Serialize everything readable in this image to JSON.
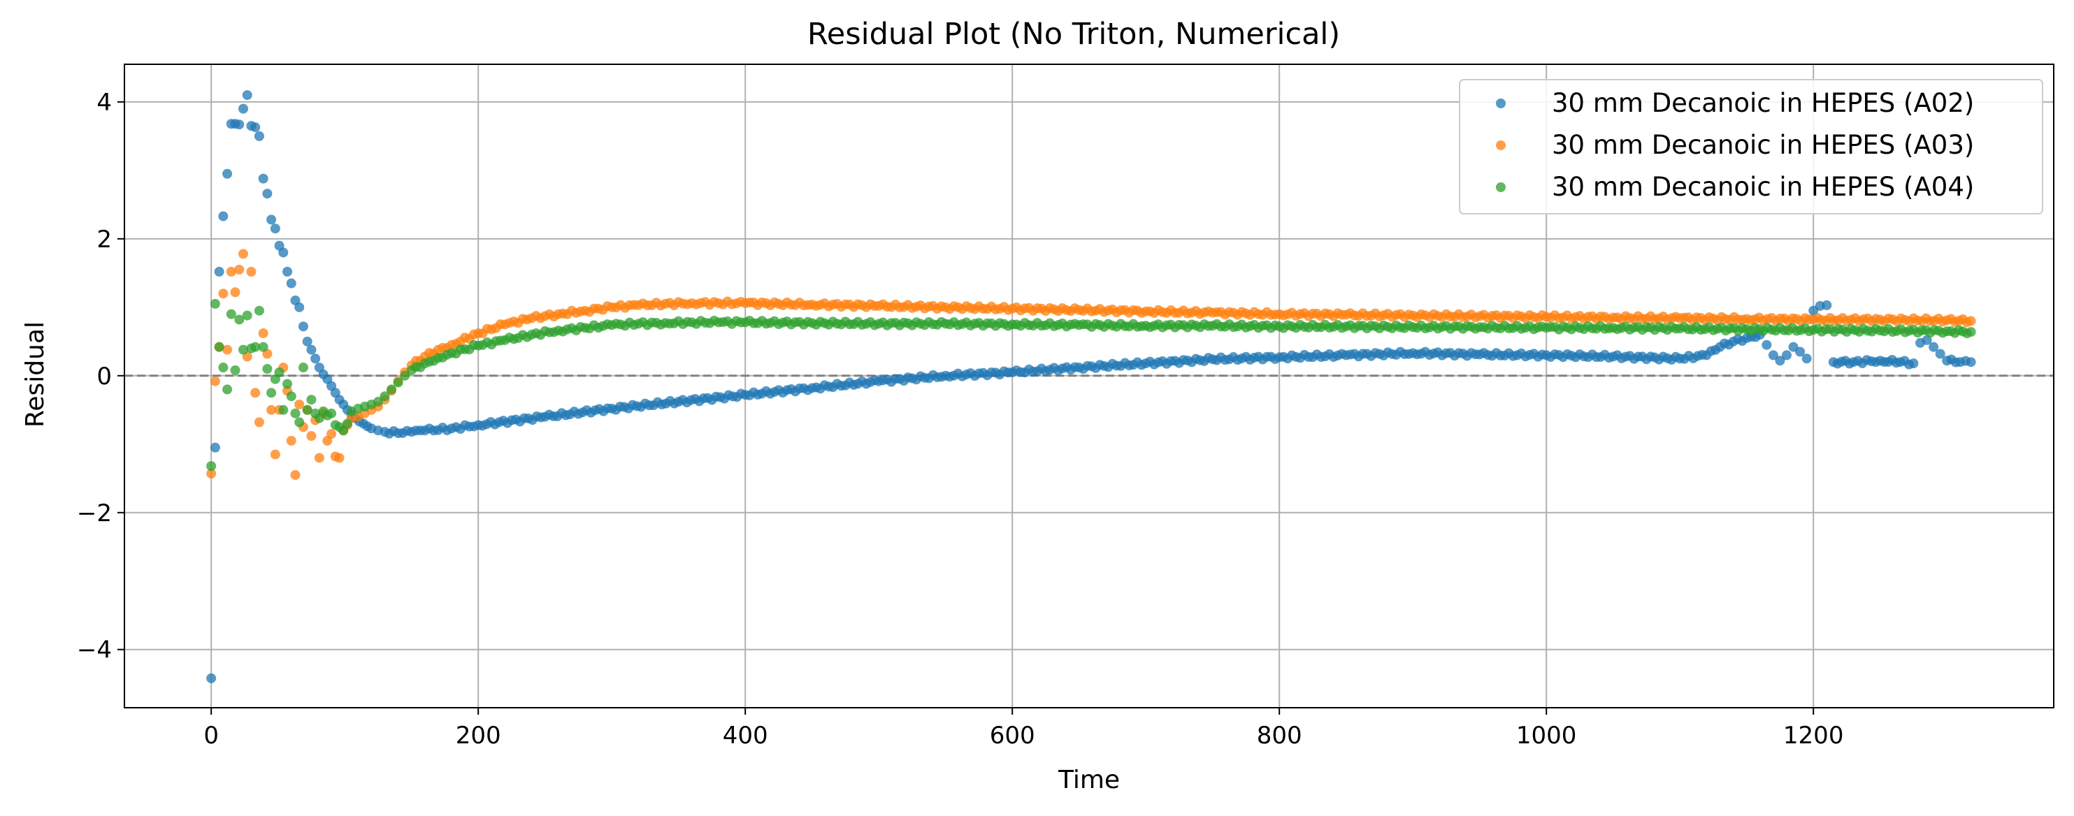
{
  "chart_data": {
    "type": "scatter",
    "title": "Residual Plot (No Triton, Numerical)",
    "xlabel": "Time",
    "ylabel": "Residual",
    "xlim": [
      -65,
      1380
    ],
    "ylim": [
      -4.85,
      4.55
    ],
    "xticks": [
      0,
      200,
      400,
      600,
      800,
      1000,
      1200
    ],
    "yticks": [
      -4,
      -2,
      0,
      2,
      4
    ],
    "ytick_labels": [
      "−4",
      "−2",
      "0",
      "2",
      "4"
    ],
    "grid": true,
    "reference_line": {
      "y": 0,
      "style": "dashed",
      "color": "#808080"
    },
    "legend_position": "top-right",
    "series": [
      {
        "name": "30 mm Decanoic in HEPES (A02)",
        "color": "#1f77b4",
        "points": [
          [
            0,
            -4.42
          ],
          [
            3,
            -1.05
          ],
          [
            6,
            1.52
          ],
          [
            9,
            2.33
          ],
          [
            12,
            2.95
          ],
          [
            15,
            3.68
          ],
          [
            18,
            3.68
          ],
          [
            21,
            3.67
          ],
          [
            24,
            3.9
          ],
          [
            27,
            4.1
          ],
          [
            30,
            3.65
          ],
          [
            33,
            3.63
          ],
          [
            36,
            3.5
          ],
          [
            39,
            2.88
          ],
          [
            42,
            2.66
          ],
          [
            45,
            2.28
          ],
          [
            48,
            2.15
          ],
          [
            51,
            1.9
          ],
          [
            54,
            1.8
          ],
          [
            57,
            1.52
          ],
          [
            60,
            1.35
          ],
          [
            63,
            1.1
          ],
          [
            66,
            1.0
          ],
          [
            69,
            0.72
          ],
          [
            72,
            0.5
          ],
          [
            75,
            0.38
          ],
          [
            78,
            0.25
          ],
          [
            81,
            0.12
          ],
          [
            84,
            0.02
          ],
          [
            87,
            -0.05
          ],
          [
            90,
            -0.15
          ],
          [
            93,
            -0.25
          ],
          [
            96,
            -0.35
          ],
          [
            99,
            -0.42
          ],
          [
            102,
            -0.5
          ],
          [
            105,
            -0.57
          ],
          [
            108,
            -0.62
          ],
          [
            111,
            -0.67
          ],
          [
            114,
            -0.7
          ],
          [
            117,
            -0.74
          ],
          [
            120,
            -0.77
          ],
          [
            125,
            -0.8
          ],
          [
            130,
            -0.82
          ],
          [
            140,
            -0.84
          ],
          [
            150,
            -0.82
          ],
          [
            160,
            -0.8
          ],
          [
            180,
            -0.77
          ],
          [
            200,
            -0.72
          ],
          [
            250,
            -0.6
          ],
          [
            300,
            -0.48
          ],
          [
            350,
            -0.38
          ],
          [
            400,
            -0.28
          ],
          [
            450,
            -0.18
          ],
          [
            500,
            -0.08
          ],
          [
            550,
            0.0
          ],
          [
            600,
            0.05
          ],
          [
            650,
            0.12
          ],
          [
            700,
            0.18
          ],
          [
            750,
            0.24
          ],
          [
            800,
            0.27
          ],
          [
            850,
            0.3
          ],
          [
            900,
            0.33
          ],
          [
            950,
            0.31
          ],
          [
            1000,
            0.3
          ],
          [
            1050,
            0.28
          ],
          [
            1100,
            0.25
          ],
          [
            1120,
            0.3
          ],
          [
            1130,
            0.42
          ],
          [
            1140,
            0.5
          ],
          [
            1150,
            0.55
          ],
          [
            1160,
            0.6
          ],
          [
            1165,
            0.45
          ],
          [
            1170,
            0.3
          ],
          [
            1175,
            0.22
          ],
          [
            1180,
            0.3
          ],
          [
            1185,
            0.42
          ],
          [
            1190,
            0.35
          ],
          [
            1195,
            0.25
          ],
          [
            1200,
            0.95
          ],
          [
            1205,
            1.02
          ],
          [
            1210,
            1.03
          ],
          [
            1215,
            0.2
          ],
          [
            1230,
            0.2
          ],
          [
            1250,
            0.22
          ],
          [
            1265,
            0.2
          ],
          [
            1275,
            0.18
          ],
          [
            1280,
            0.48
          ],
          [
            1285,
            0.52
          ],
          [
            1290,
            0.42
          ],
          [
            1295,
            0.32
          ],
          [
            1300,
            0.22
          ],
          [
            1310,
            0.2
          ],
          [
            1318,
            0.2
          ]
        ]
      },
      {
        "name": "30 mm Decanoic in HEPES (A03)",
        "color": "#ff7f0e",
        "points": [
          [
            0,
            -1.43
          ],
          [
            3,
            -0.08
          ],
          [
            6,
            0.42
          ],
          [
            9,
            1.2
          ],
          [
            12,
            0.38
          ],
          [
            15,
            1.52
          ],
          [
            18,
            1.22
          ],
          [
            21,
            1.55
          ],
          [
            24,
            1.78
          ],
          [
            27,
            0.28
          ],
          [
            30,
            1.52
          ],
          [
            33,
            -0.25
          ],
          [
            36,
            -0.68
          ],
          [
            39,
            0.62
          ],
          [
            42,
            0.32
          ],
          [
            45,
            -0.5
          ],
          [
            48,
            -1.15
          ],
          [
            51,
            -0.5
          ],
          [
            54,
            0.12
          ],
          [
            57,
            -0.22
          ],
          [
            60,
            -0.95
          ],
          [
            63,
            -1.45
          ],
          [
            66,
            -0.42
          ],
          [
            69,
            -0.75
          ],
          [
            72,
            -0.5
          ],
          [
            75,
            -0.88
          ],
          [
            78,
            -0.65
          ],
          [
            81,
            -1.2
          ],
          [
            84,
            -0.55
          ],
          [
            87,
            -0.95
          ],
          [
            90,
            -0.85
          ],
          [
            93,
            -1.18
          ],
          [
            96,
            -1.2
          ],
          [
            99,
            -0.8
          ],
          [
            102,
            -0.72
          ],
          [
            105,
            -0.62
          ],
          [
            110,
            -0.6
          ],
          [
            115,
            -0.55
          ],
          [
            120,
            -0.5
          ],
          [
            125,
            -0.45
          ],
          [
            130,
            -0.35
          ],
          [
            135,
            -0.22
          ],
          [
            140,
            -0.08
          ],
          [
            145,
            0.05
          ],
          [
            150,
            0.15
          ],
          [
            160,
            0.28
          ],
          [
            170,
            0.38
          ],
          [
            180,
            0.45
          ],
          [
            200,
            0.62
          ],
          [
            220,
            0.75
          ],
          [
            240,
            0.84
          ],
          [
            260,
            0.9
          ],
          [
            280,
            0.95
          ],
          [
            300,
            1.0
          ],
          [
            320,
            1.03
          ],
          [
            340,
            1.05
          ],
          [
            360,
            1.06
          ],
          [
            380,
            1.06
          ],
          [
            400,
            1.06
          ],
          [
            450,
            1.04
          ],
          [
            500,
            1.02
          ],
          [
            550,
            1.0
          ],
          [
            600,
            0.98
          ],
          [
            650,
            0.96
          ],
          [
            700,
            0.94
          ],
          [
            750,
            0.92
          ],
          [
            800,
            0.9
          ],
          [
            850,
            0.89
          ],
          [
            900,
            0.88
          ],
          [
            950,
            0.87
          ],
          [
            1000,
            0.86
          ],
          [
            1050,
            0.85
          ],
          [
            1100,
            0.84
          ],
          [
            1150,
            0.83
          ],
          [
            1200,
            0.82
          ],
          [
            1250,
            0.82
          ],
          [
            1300,
            0.81
          ],
          [
            1318,
            0.8
          ]
        ]
      },
      {
        "name": "30 mm Decanoic in HEPES (A04)",
        "color": "#2ca02c",
        "points": [
          [
            0,
            -1.32
          ],
          [
            3,
            1.05
          ],
          [
            6,
            0.42
          ],
          [
            9,
            0.12
          ],
          [
            12,
            -0.2
          ],
          [
            15,
            0.9
          ],
          [
            18,
            0.08
          ],
          [
            21,
            0.82
          ],
          [
            24,
            0.38
          ],
          [
            27,
            0.88
          ],
          [
            30,
            0.4
          ],
          [
            33,
            0.42
          ],
          [
            36,
            0.95
          ],
          [
            39,
            0.42
          ],
          [
            42,
            0.1
          ],
          [
            45,
            -0.25
          ],
          [
            48,
            -0.05
          ],
          [
            51,
            0.05
          ],
          [
            54,
            -0.5
          ],
          [
            57,
            -0.12
          ],
          [
            60,
            -0.3
          ],
          [
            63,
            -0.55
          ],
          [
            66,
            -0.68
          ],
          [
            69,
            0.12
          ],
          [
            72,
            -0.5
          ],
          [
            75,
            -0.35
          ],
          [
            78,
            -0.55
          ],
          [
            81,
            -0.62
          ],
          [
            84,
            -0.52
          ],
          [
            87,
            -0.58
          ],
          [
            90,
            -0.55
          ],
          [
            93,
            -0.72
          ],
          [
            96,
            -0.75
          ],
          [
            99,
            -0.8
          ],
          [
            102,
            -0.7
          ],
          [
            105,
            -0.52
          ],
          [
            110,
            -0.48
          ],
          [
            115,
            -0.45
          ],
          [
            120,
            -0.42
          ],
          [
            125,
            -0.38
          ],
          [
            130,
            -0.3
          ],
          [
            135,
            -0.2
          ],
          [
            140,
            -0.1
          ],
          [
            145,
            0.0
          ],
          [
            150,
            0.08
          ],
          [
            160,
            0.18
          ],
          [
            170,
            0.26
          ],
          [
            180,
            0.33
          ],
          [
            200,
            0.44
          ],
          [
            220,
            0.52
          ],
          [
            240,
            0.6
          ],
          [
            260,
            0.66
          ],
          [
            280,
            0.7
          ],
          [
            300,
            0.74
          ],
          [
            320,
            0.76
          ],
          [
            340,
            0.77
          ],
          [
            360,
            0.78
          ],
          [
            380,
            0.78
          ],
          [
            400,
            0.78
          ],
          [
            450,
            0.77
          ],
          [
            500,
            0.76
          ],
          [
            550,
            0.76
          ],
          [
            600,
            0.75
          ],
          [
            650,
            0.74
          ],
          [
            700,
            0.73
          ],
          [
            750,
            0.73
          ],
          [
            800,
            0.72
          ],
          [
            850,
            0.72
          ],
          [
            900,
            0.71
          ],
          [
            950,
            0.71
          ],
          [
            1000,
            0.7
          ],
          [
            1050,
            0.7
          ],
          [
            1100,
            0.69
          ],
          [
            1150,
            0.68
          ],
          [
            1200,
            0.67
          ],
          [
            1250,
            0.66
          ],
          [
            1300,
            0.65
          ],
          [
            1318,
            0.64
          ]
        ]
      }
    ]
  }
}
